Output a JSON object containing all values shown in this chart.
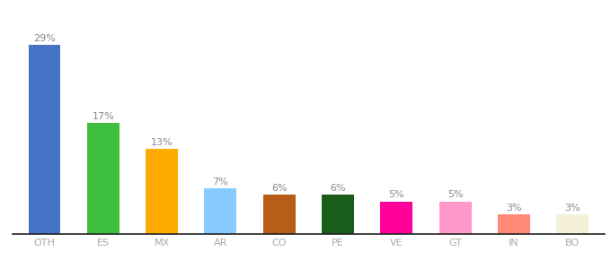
{
  "categories": [
    "OTH",
    "ES",
    "MX",
    "AR",
    "CO",
    "PE",
    "VE",
    "GT",
    "IN",
    "BO"
  ],
  "values": [
    29,
    17,
    13,
    7,
    6,
    6,
    5,
    5,
    3,
    3
  ],
  "bar_colors": [
    "#4472c4",
    "#3dbf3d",
    "#ffaa00",
    "#88ccff",
    "#b85c1a",
    "#1a5c1a",
    "#ff0099",
    "#ff99cc",
    "#ff8877",
    "#f5f0d8"
  ],
  "label_fontsize": 8,
  "tick_fontsize": 8,
  "ylim": [
    0,
    33
  ],
  "bar_width": 0.55,
  "background_color": "#ffffff",
  "label_color": "#888888",
  "tick_color": "#aaaaaa",
  "bottom_spine_color": "#222222"
}
